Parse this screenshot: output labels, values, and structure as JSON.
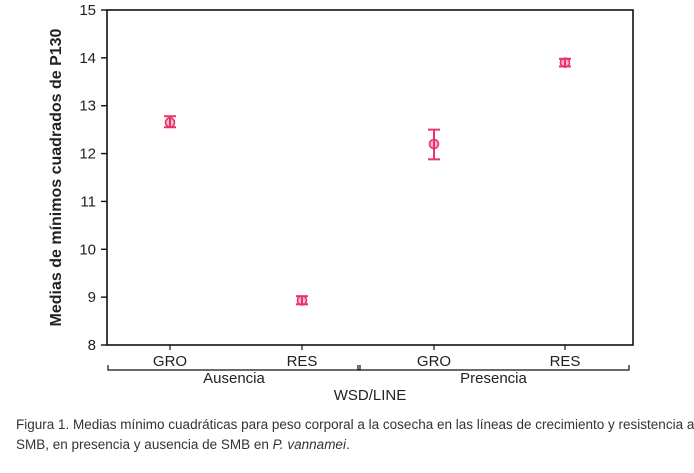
{
  "chart_data": {
    "type": "scatter",
    "ylabel": "Medias de mínimos cuadrados de P130",
    "xlabel": "WSD/LINE",
    "ylim": [
      8,
      15
    ],
    "yticks": [
      8,
      9,
      10,
      11,
      12,
      13,
      14,
      15
    ],
    "categories": [
      "GRO",
      "RES",
      "GRO",
      "RES"
    ],
    "groups": [
      {
        "label": "Ausencia",
        "categories": [
          "GRO",
          "RES"
        ]
      },
      {
        "label": "Presencia",
        "categories": [
          "GRO",
          "RES"
        ]
      }
    ],
    "points": [
      {
        "group": "Ausencia",
        "category": "GRO",
        "mean": 12.65,
        "lower": 12.55,
        "upper": 12.78
      },
      {
        "group": "Ausencia",
        "category": "RES",
        "mean": 8.93,
        "lower": 8.85,
        "upper": 9.02
      },
      {
        "group": "Presencia",
        "category": "GRO",
        "mean": 12.2,
        "lower": 11.88,
        "upper": 12.5
      },
      {
        "group": "Presencia",
        "category": "RES",
        "mean": 13.9,
        "lower": 13.82,
        "upper": 13.98
      }
    ],
    "grid": false,
    "marker_color": "#e8336b"
  },
  "caption": {
    "line1": "Figura 1. Medias mínimo cuadráticas para peso corporal a la cosecha en las líneas de crecimiento y resistencia a",
    "line2_prefix": "SMB, en presencia y ausencia de SMB en ",
    "species": "P. vannamei",
    "line2_suffix": "."
  }
}
